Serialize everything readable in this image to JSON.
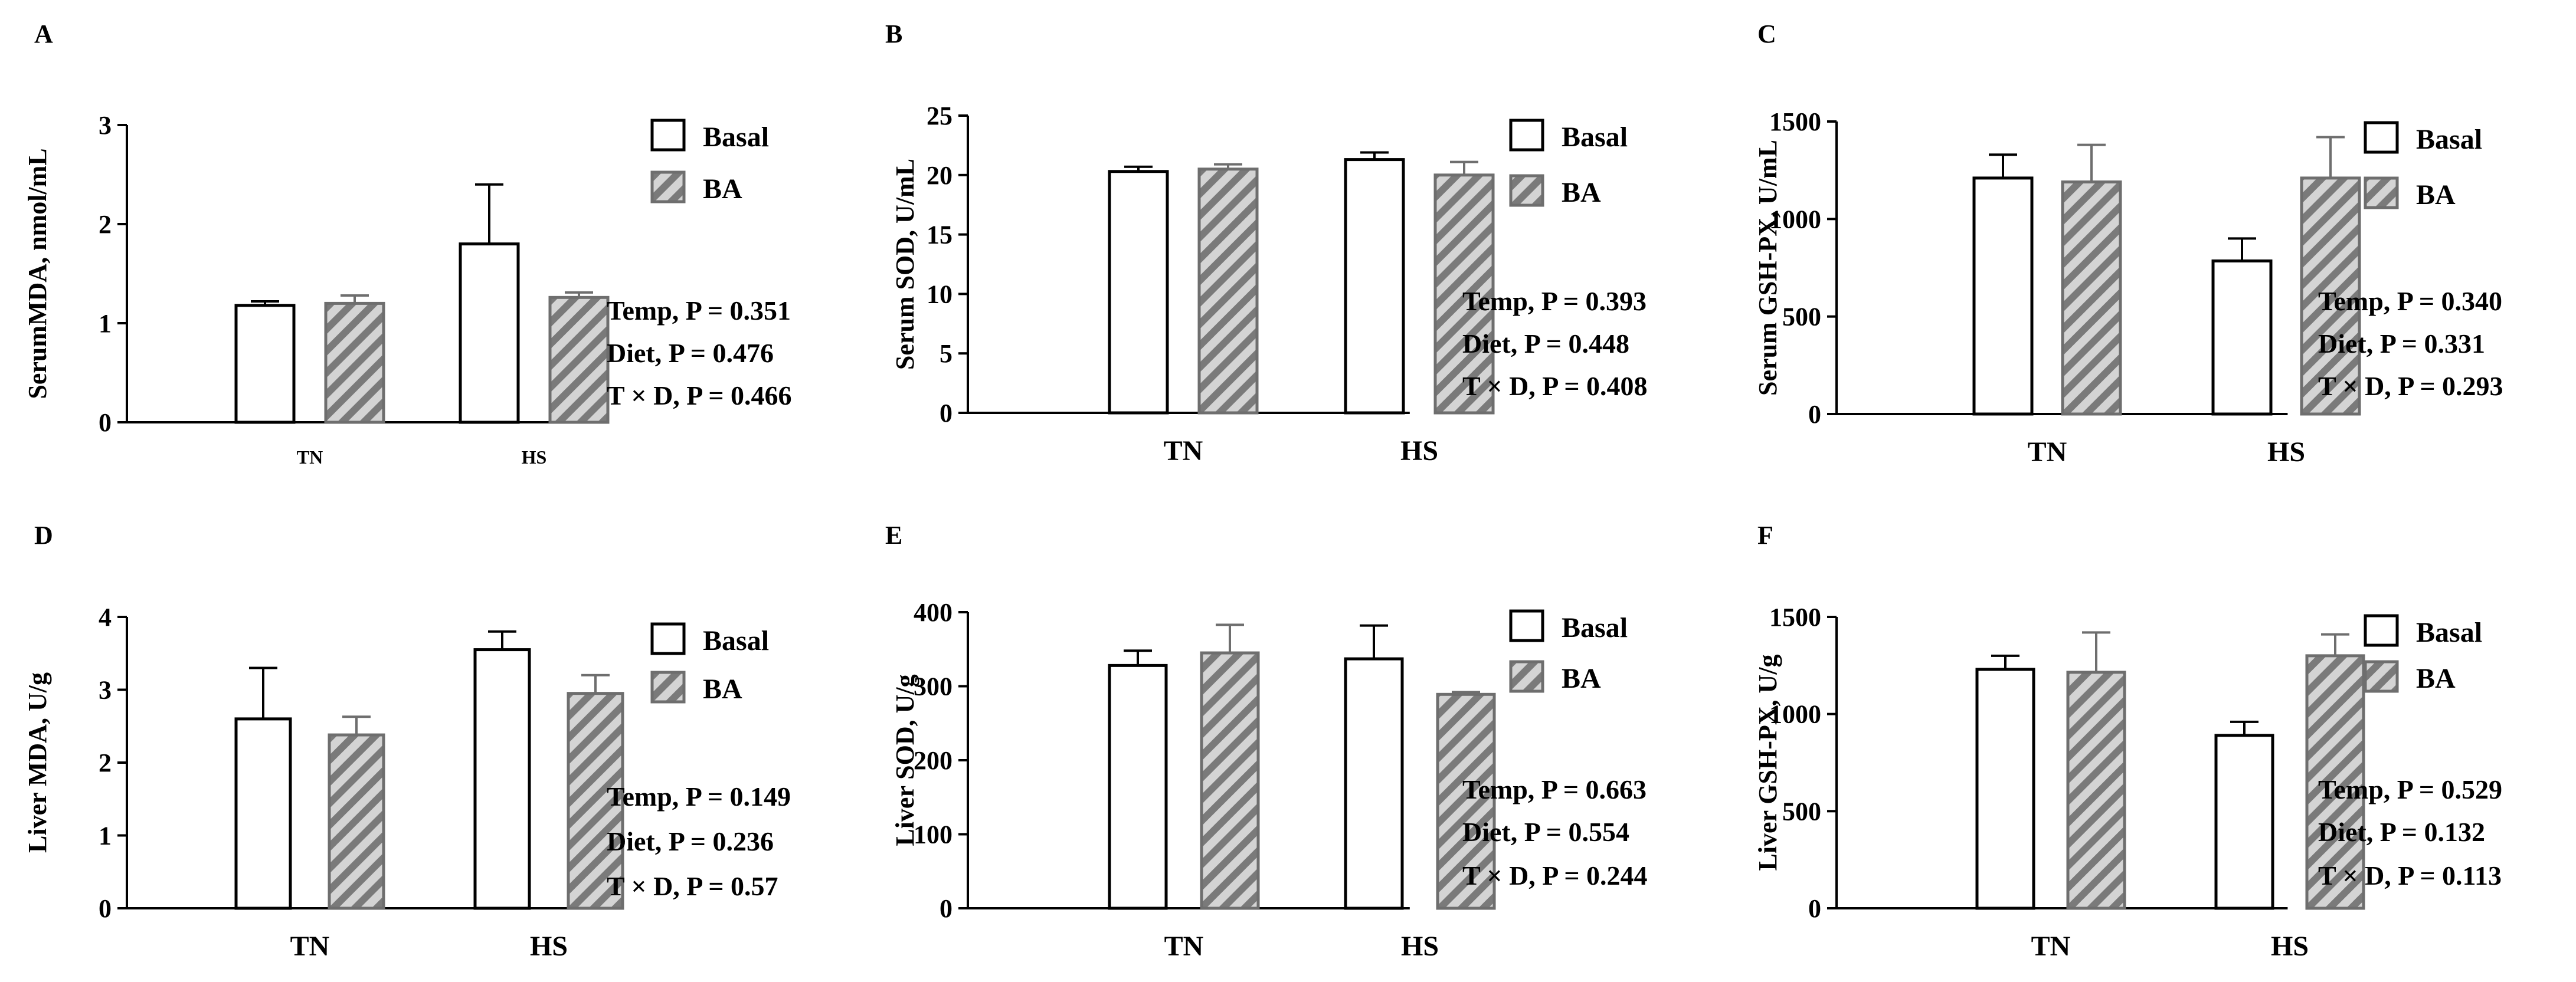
{
  "colors": {
    "basal_fill": "#ffffff",
    "ba_fill": "#d4d4d4",
    "ba_stripe": "#7a7a7a",
    "ba_edge": "#6e6e6e",
    "basal_edge": "#000000",
    "axis": "#000000"
  },
  "chart_data": [
    {
      "type": "bar",
      "panel": "A",
      "ylabel": "SerumMDA, nmol/mL",
      "ylim": [
        0,
        3
      ],
      "yticks": [
        "0",
        "1",
        "2",
        "3"
      ],
      "categories": [
        "TN",
        "HS"
      ],
      "series": [
        {
          "name": "Basal",
          "values": [
            1.18,
            1.8
          ],
          "errors": [
            0.04,
            0.6
          ]
        },
        {
          "name": "BA",
          "values": [
            1.2,
            1.26
          ],
          "errors": [
            0.08,
            0.05
          ]
        }
      ],
      "legend": [
        "Basal",
        "BA"
      ],
      "stats": [
        "Temp, P = 0.351",
        "Diet, P = 0.476",
        "T × D, P = 0.466"
      ]
    },
    {
      "type": "bar",
      "panel": "B",
      "ylabel": "Serum SOD, U/mL",
      "ylim": [
        0,
        25
      ],
      "yticks": [
        "0",
        "5",
        "10",
        "15",
        "20",
        "25"
      ],
      "categories": [
        "TN",
        "HS"
      ],
      "series": [
        {
          "name": "Basal",
          "values": [
            20.3,
            21.3
          ],
          "errors": [
            0.4,
            0.6
          ]
        },
        {
          "name": "BA",
          "values": [
            20.5,
            20.0
          ],
          "errors": [
            0.4,
            1.1
          ]
        }
      ],
      "legend": [
        "Basal",
        "BA"
      ],
      "stats": [
        "Temp, P = 0.393",
        "Diet, P = 0.448",
        "T × D, P = 0.408"
      ]
    },
    {
      "type": "bar",
      "panel": "C",
      "ylabel": "Serum GSH-PX, U/mL",
      "ylim": [
        0,
        1500
      ],
      "yticks": [
        "0",
        "500",
        "1000",
        "1500"
      ],
      "categories": [
        "TN",
        "HS"
      ],
      "series": [
        {
          "name": "Basal",
          "values": [
            1210,
            785
          ],
          "errors": [
            120,
            115
          ]
        },
        {
          "name": "BA",
          "values": [
            1190,
            1210
          ],
          "errors": [
            190,
            210
          ]
        }
      ],
      "legend": [
        "Basal",
        "BA"
      ],
      "stats": [
        "Temp, P = 0.340",
        "Diet, P = 0.331",
        "T × D, P = 0.293"
      ]
    },
    {
      "type": "bar",
      "panel": "D",
      "ylabel": "Liver MDA, U/g",
      "ylim": [
        0,
        4
      ],
      "yticks": [
        "0",
        "1",
        "2",
        "3",
        "4"
      ],
      "categories": [
        "TN",
        "HS"
      ],
      "series": [
        {
          "name": "Basal",
          "values": [
            2.6,
            3.55
          ],
          "errors": [
            0.7,
            0.25
          ]
        },
        {
          "name": "BA",
          "values": [
            2.38,
            2.95
          ],
          "errors": [
            0.25,
            0.25
          ]
        }
      ],
      "legend": [
        "Basal",
        "BA"
      ],
      "stats": [
        "Temp, P = 0.149",
        "Diet, P = 0.236",
        "T × D, P = 0.57"
      ]
    },
    {
      "type": "bar",
      "panel": "E",
      "ylabel": "Liver SOD, U/g",
      "ylim": [
        0,
        400
      ],
      "yticks": [
        "0",
        "100",
        "200",
        "300",
        "400"
      ],
      "categories": [
        "TN",
        "HS"
      ],
      "series": [
        {
          "name": "Basal",
          "values": [
            328,
            337
          ],
          "errors": [
            20,
            45
          ]
        },
        {
          "name": "BA",
          "values": [
            345,
            289
          ],
          "errors": [
            38,
            3
          ]
        }
      ],
      "legend": [
        "Basal",
        "BA"
      ],
      "stats": [
        "Temp, P = 0.663",
        "Diet, P = 0.554",
        "T × D, P = 0.244"
      ]
    },
    {
      "type": "bar",
      "panel": "F",
      "ylabel": "Liver GSH-PX, U/g",
      "ylim": [
        0,
        1500
      ],
      "yticks": [
        "0",
        "500",
        "1000",
        "1500"
      ],
      "categories": [
        "TN",
        "HS"
      ],
      "series": [
        {
          "name": "Basal",
          "values": [
            1230,
            890
          ],
          "errors": [
            70,
            70
          ]
        },
        {
          "name": "BA",
          "values": [
            1215,
            1300
          ],
          "errors": [
            205,
            110
          ]
        }
      ],
      "legend": [
        "Basal",
        "BA"
      ],
      "stats": [
        "Temp, P = 0.529",
        "Diet, P = 0.132",
        "T × D, P = 0.113"
      ]
    }
  ]
}
